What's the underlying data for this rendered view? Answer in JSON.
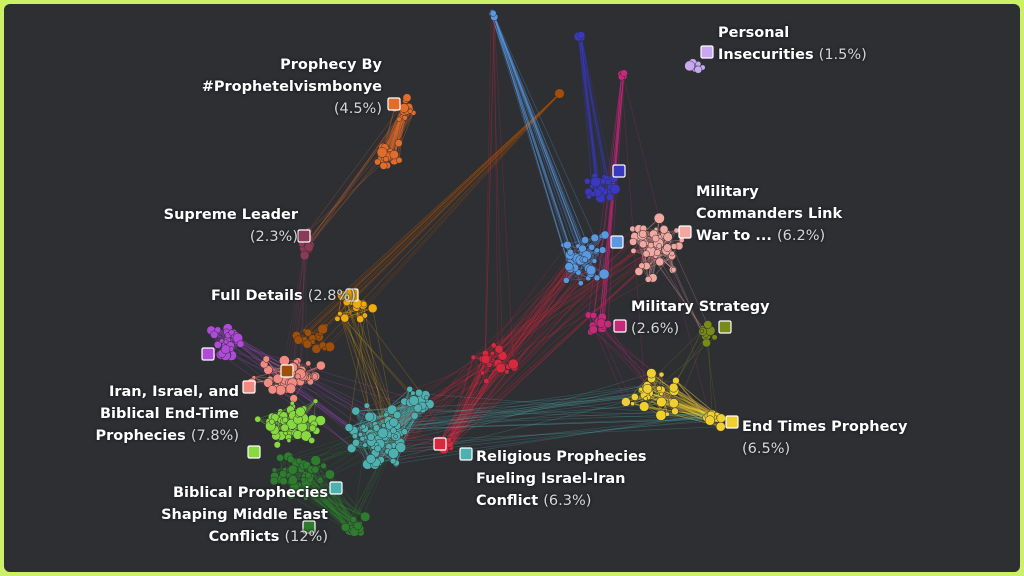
{
  "clusters": [
    {
      "id": "prophecy-by",
      "label": "Prophecy By\n#Prophetelvismbonye",
      "pct": "(4.5%)",
      "color": "#e46c2a"
    },
    {
      "id": "supreme-leader",
      "label": "Supreme Leader",
      "pct": "(2.3%)",
      "color": "#8a3a55"
    },
    {
      "id": "full-details",
      "label": "Full Details",
      "pct": "(2.8%)",
      "color": "#f2aa0c"
    },
    {
      "id": "iran-israel",
      "label": "Iran, Israel, and\nBiblical End-Time\nProphecies",
      "pct": "(7.8%)",
      "color": "#f28a80"
    },
    {
      "id": "biblical-shaping",
      "label": "Biblical Prophecies\nShaping Middle East\nConflicts",
      "pct": "(12%)",
      "color": "#2e7d2e"
    },
    {
      "id": "religious-fueling",
      "label": "Religious Prophecies\nFueling Israel-Iran\nConflict",
      "pct": "(6.3%)",
      "color": "#4fb0b0"
    },
    {
      "id": "end-times",
      "label": "End Times Prophecy",
      "pct": "(6.5%)",
      "color": "#f0d030"
    },
    {
      "id": "military-strategy",
      "label": "Military Strategy",
      "pct": "(2.6%)",
      "color": "#c8287a"
    },
    {
      "id": "military-commanders",
      "label": "Military\nCommanders Link\nWar to ...",
      "pct": "(6.2%)",
      "color": "#f0a8a0"
    },
    {
      "id": "personal-insecurities",
      "label": "Personal\nInsecurities",
      "pct": "(1.5%)",
      "color": "#c8a8f0"
    }
  ],
  "other_cluster_colors": {
    "purple": "#b04ad8",
    "brown": "#a04e08",
    "lightgreen": "#88d840",
    "red": "#d8283e",
    "blue": "#5a98e0",
    "indigo": "#3a38c0",
    "olive": "#7a8a18"
  },
  "colors": {
    "background": "#2d2f33",
    "frame": "#ccf06a"
  }
}
